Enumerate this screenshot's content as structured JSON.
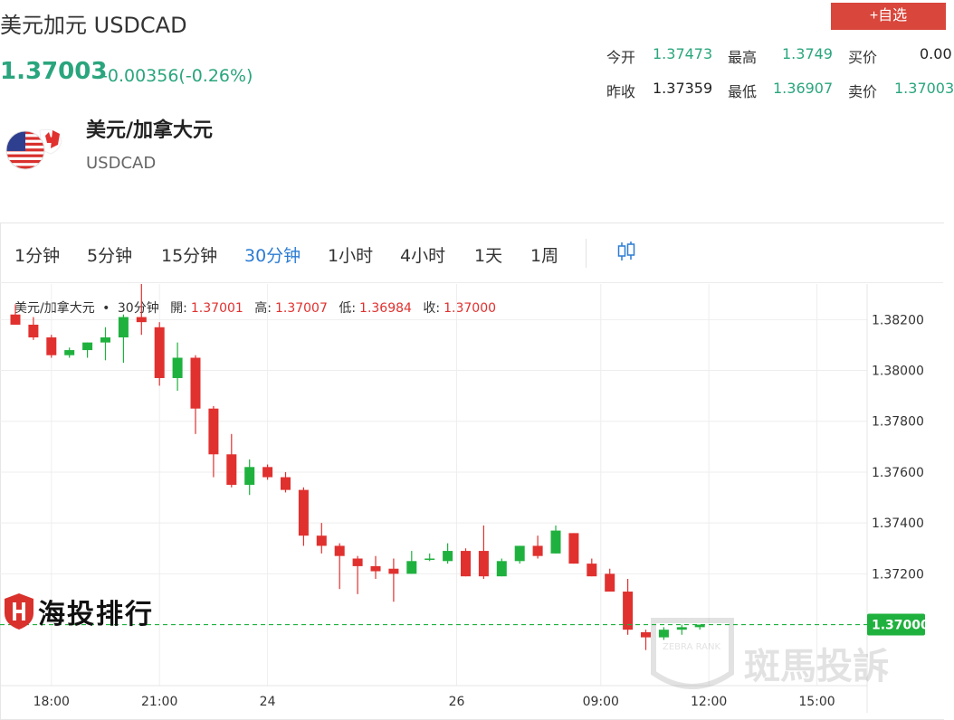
{
  "header": {
    "title": "美元加元 USDCAD",
    "add_button": "+自选",
    "price": "1.37003",
    "change": "-0.00356(-0.26%)"
  },
  "quote": {
    "open_label": "今开",
    "open": "1.37473",
    "high_label": "最高",
    "high": "1.3749",
    "bid_label": "买价",
    "bid": "0.00",
    "prev_label": "昨收",
    "prev": "1.37359",
    "low_label": "最低",
    "low": "1.36907",
    "ask_label": "卖价",
    "ask": "1.37003"
  },
  "pair": {
    "name": "美元/加拿大元",
    "code": "USDCAD"
  },
  "tabs": [
    "1分钟",
    "5分钟",
    "15分钟",
    "30分钟",
    "1小时",
    "4小时",
    "1天",
    "1周"
  ],
  "active_tab": "30分钟",
  "legend": {
    "name": "美元/加拿大元",
    "dot": "•",
    "interval": "30分钟",
    "open_label": "開:",
    "open": "1.37001",
    "high_label": "高:",
    "high": "1.37007",
    "low_label": "低:",
    "low": "1.36984",
    "close_label": "收:",
    "close": "1.37000"
  },
  "logos": {
    "left": "海投排行",
    "right": "斑馬投訴",
    "right_small": "ZEBRA RANK"
  },
  "colors": {
    "up": "#1fb13e",
    "down": "#e0312f",
    "accent": "#2aa57e",
    "active_tab": "#2b7cd3",
    "button": "#d9463b"
  },
  "chart_data": {
    "type": "candlestick",
    "y_ticks": [
      "1.38200",
      "1.38000",
      "1.37800",
      "1.37600",
      "1.37400",
      "1.37200"
    ],
    "ylim": [
      1.3676,
      1.3834
    ],
    "x_ticks": [
      "18:00",
      "21:00",
      "24",
      "26",
      "09:00",
      "12:00",
      "15:00"
    ],
    "x_tick_index": [
      2,
      8,
      14,
      24.5,
      32.5,
      38.5,
      44.5
    ],
    "current_price_label": "1.37000",
    "current_price": 1.37,
    "candles": [
      {
        "o": 1.3822,
        "h": 1.3826,
        "l": 1.3818,
        "c": 1.3818
      },
      {
        "o": 1.3818,
        "h": 1.3821,
        "l": 1.3812,
        "c": 1.3813
      },
      {
        "o": 1.3813,
        "h": 1.3814,
        "l": 1.3805,
        "c": 1.3806
      },
      {
        "o": 1.3806,
        "h": 1.3809,
        "l": 1.3805,
        "c": 1.3808
      },
      {
        "o": 1.3808,
        "h": 1.3811,
        "l": 1.3805,
        "c": 1.3811
      },
      {
        "o": 1.3811,
        "h": 1.3817,
        "l": 1.3804,
        "c": 1.3813
      },
      {
        "o": 1.3813,
        "h": 1.3822,
        "l": 1.3803,
        "c": 1.3821
      },
      {
        "o": 1.3821,
        "h": 1.3834,
        "l": 1.3814,
        "c": 1.3819
      },
      {
        "o": 1.3817,
        "h": 1.3819,
        "l": 1.3794,
        "c": 1.3797
      },
      {
        "o": 1.3797,
        "h": 1.3811,
        "l": 1.3792,
        "c": 1.3805
      },
      {
        "o": 1.3805,
        "h": 1.3806,
        "l": 1.3775,
        "c": 1.3785
      },
      {
        "o": 1.3785,
        "h": 1.3786,
        "l": 1.3758,
        "c": 1.3767
      },
      {
        "o": 1.3767,
        "h": 1.3775,
        "l": 1.3754,
        "c": 1.3755
      },
      {
        "o": 1.3755,
        "h": 1.3765,
        "l": 1.3751,
        "c": 1.3762
      },
      {
        "o": 1.3762,
        "h": 1.3763,
        "l": 1.3757,
        "c": 1.3758
      },
      {
        "o": 1.3758,
        "h": 1.376,
        "l": 1.3752,
        "c": 1.3753
      },
      {
        "o": 1.3753,
        "h": 1.3754,
        "l": 1.3731,
        "c": 1.3735
      },
      {
        "o": 1.3735,
        "h": 1.374,
        "l": 1.3728,
        "c": 1.3731
      },
      {
        "o": 1.3731,
        "h": 1.3732,
        "l": 1.3714,
        "c": 1.3727
      },
      {
        "o": 1.3726,
        "h": 1.3727,
        "l": 1.3712,
        "c": 1.3723
      },
      {
        "o": 1.3723,
        "h": 1.3727,
        "l": 1.3718,
        "c": 1.3721
      },
      {
        "o": 1.3722,
        "h": 1.3726,
        "l": 1.3709,
        "c": 1.372
      },
      {
        "o": 1.372,
        "h": 1.3729,
        "l": 1.372,
        "c": 1.3725
      },
      {
        "o": 1.3726,
        "h": 1.3728,
        "l": 1.3725,
        "c": 1.3726
      },
      {
        "o": 1.3725,
        "h": 1.3732,
        "l": 1.3724,
        "c": 1.3729
      },
      {
        "o": 1.3729,
        "h": 1.373,
        "l": 1.3719,
        "c": 1.3719
      },
      {
        "o": 1.3729,
        "h": 1.3739,
        "l": 1.3718,
        "c": 1.3719
      },
      {
        "o": 1.3719,
        "h": 1.3726,
        "l": 1.3719,
        "c": 1.3725
      },
      {
        "o": 1.3725,
        "h": 1.3731,
        "l": 1.3724,
        "c": 1.3731
      },
      {
        "o": 1.3731,
        "h": 1.3735,
        "l": 1.3726,
        "c": 1.3727
      },
      {
        "o": 1.3728,
        "h": 1.3739,
        "l": 1.3728,
        "c": 1.3737
      },
      {
        "o": 1.3736,
        "h": 1.3736,
        "l": 1.3724,
        "c": 1.3724
      },
      {
        "o": 1.3724,
        "h": 1.3726,
        "l": 1.3719,
        "c": 1.3719
      },
      {
        "o": 1.372,
        "h": 1.3722,
        "l": 1.3713,
        "c": 1.3713
      },
      {
        "o": 1.3713,
        "h": 1.3718,
        "l": 1.3696,
        "c": 1.3698
      },
      {
        "o": 1.3697,
        "h": 1.3698,
        "l": 1.369,
        "c": 1.3695
      },
      {
        "o": 1.3695,
        "h": 1.3699,
        "l": 1.3694,
        "c": 1.3698
      },
      {
        "o": 1.3698,
        "h": 1.37,
        "l": 1.3696,
        "c": 1.3699
      },
      {
        "o": 1.3699,
        "h": 1.37,
        "l": 1.3698,
        "c": 1.37
      }
    ]
  }
}
